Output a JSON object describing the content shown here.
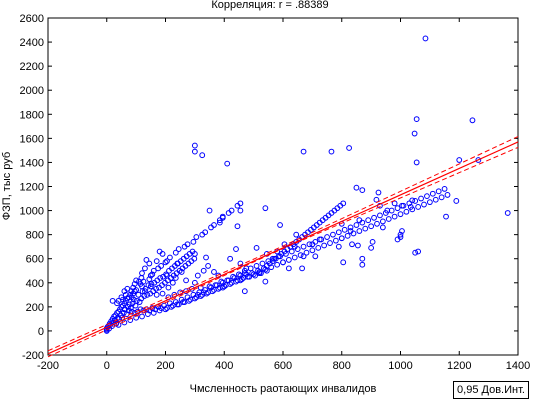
{
  "chart_data": {
    "type": "scatter",
    "title": "Корреляция: r =  .88389",
    "xlabel": "Чмсленность раотающих инвалидов",
    "ylabel": "ФЗП, тыс руб",
    "xlim": [
      -200,
      1400
    ],
    "ylim": [
      -200,
      2600
    ],
    "x_ticks": [
      -200,
      0,
      200,
      400,
      600,
      800,
      1000,
      1200,
      1400
    ],
    "y_ticks": [
      -200,
      0,
      200,
      400,
      600,
      800,
      1000,
      1200,
      1400,
      1600,
      1800,
      2000,
      2200,
      2400,
      2600
    ],
    "legend_text": "0,95 Дов.Инт.",
    "grid": false,
    "colors": {
      "points": "#0000ff",
      "fit_line": "#ff0000",
      "confidence_band": "#ff0000",
      "axes": "#000000"
    },
    "fit": {
      "x0": -200,
      "y0": -190,
      "x1": 1400,
      "y1": 1570
    },
    "confidence": {
      "upper": [
        [
          -200,
          -165
        ],
        [
          600,
          705
        ],
        [
          1400,
          1615
        ]
      ],
      "lower": [
        [
          -200,
          -215
        ],
        [
          600,
          685
        ],
        [
          1400,
          1525
        ]
      ]
    },
    "points": [
      [
        1085,
        2430
      ],
      [
        1055,
        1760
      ],
      [
        1245,
        1750
      ],
      [
        1048,
        1640
      ],
      [
        1365,
        980
      ],
      [
        300,
        1540
      ],
      [
        300,
        1490
      ],
      [
        325,
        1460
      ],
      [
        410,
        1390
      ],
      [
        670,
        1490
      ],
      [
        765,
        1490
      ],
      [
        825,
        1520
      ],
      [
        1055,
        1400
      ],
      [
        1200,
        1420
      ],
      [
        1265,
        1420
      ],
      [
        1190,
        1080
      ],
      [
        1155,
        950
      ],
      [
        1060,
        660
      ],
      [
        1050,
        650
      ],
      [
        1005,
        830
      ],
      [
        925,
        1150
      ],
      [
        870,
        1170
      ],
      [
        850,
        1190
      ],
      [
        918,
        1090
      ],
      [
        930,
        1040
      ],
      [
        1035,
        1030
      ],
      [
        955,
        1000
      ],
      [
        980,
        1060
      ],
      [
        1005,
        1040
      ],
      [
        1040,
        1085
      ],
      [
        940,
        860
      ],
      [
        905,
        740
      ],
      [
        1000,
        800
      ],
      [
        1000,
        780
      ],
      [
        990,
        760
      ],
      [
        860,
        920
      ],
      [
        900,
        690
      ],
      [
        830,
        830
      ],
      [
        800,
        890
      ],
      [
        790,
        700
      ],
      [
        870,
        550
      ],
      [
        805,
        570
      ],
      [
        800,
        770
      ],
      [
        870,
        600
      ],
      [
        855,
        710
      ],
      [
        835,
        720
      ],
      [
        725,
        760
      ],
      [
        700,
        720
      ],
      [
        710,
        620
      ],
      [
        670,
        620
      ],
      [
        640,
        700
      ],
      [
        605,
        720
      ],
      [
        645,
        800
      ],
      [
        665,
        520
      ],
      [
        590,
        880
      ],
      [
        540,
        1020
      ],
      [
        455,
        1000
      ],
      [
        395,
        950
      ],
      [
        350,
        1000
      ],
      [
        445,
        870
      ],
      [
        385,
        900
      ],
      [
        455,
        560
      ],
      [
        440,
        680
      ],
      [
        420,
        600
      ],
      [
        510,
        690
      ],
      [
        545,
        640
      ],
      [
        565,
        600
      ],
      [
        580,
        660
      ],
      [
        600,
        570
      ],
      [
        620,
        520
      ],
      [
        475,
        520
      ],
      [
        470,
        480
      ],
      [
        470,
        330
      ],
      [
        455,
        420
      ],
      [
        520,
        480
      ],
      [
        545,
        500
      ],
      [
        540,
        410
      ],
      [
        395,
        360
      ],
      [
        380,
        460
      ],
      [
        365,
        490
      ],
      [
        338,
        610
      ],
      [
        345,
        540
      ],
      [
        330,
        500
      ],
      [
        300,
        640
      ],
      [
        310,
        460
      ],
      [
        300,
        400
      ],
      [
        320,
        360
      ],
      [
        270,
        420
      ],
      [
        255,
        490
      ],
      [
        240,
        560
      ],
      [
        235,
        440
      ],
      [
        225,
        400
      ],
      [
        210,
        360
      ],
      [
        205,
        460
      ],
      [
        200,
        570
      ],
      [
        190,
        640
      ],
      [
        180,
        660
      ],
      [
        170,
        580
      ],
      [
        160,
        500
      ],
      [
        150,
        460
      ],
      [
        145,
        560
      ],
      [
        135,
        590
      ],
      [
        130,
        520
      ],
      [
        120,
        480
      ],
      [
        118,
        440
      ],
      [
        110,
        410
      ],
      [
        100,
        420
      ],
      [
        95,
        390
      ],
      [
        90,
        360
      ],
      [
        84,
        330
      ],
      [
        80,
        300
      ],
      [
        75,
        280
      ],
      [
        70,
        270
      ],
      [
        65,
        250
      ],
      [
        60,
        230
      ],
      [
        55,
        210
      ],
      [
        50,
        200
      ],
      [
        45,
        180
      ],
      [
        40,
        160
      ],
      [
        35,
        150
      ],
      [
        30,
        130
      ],
      [
        25,
        120
      ],
      [
        20,
        100
      ],
      [
        15,
        80
      ],
      [
        10,
        60
      ],
      [
        5,
        40
      ],
      [
        0,
        20
      ],
      [
        0,
        0
      ],
      [
        0,
        10
      ],
      [
        2,
        30
      ],
      [
        8,
        20
      ],
      [
        12,
        50
      ],
      [
        18,
        40
      ],
      [
        22,
        70
      ],
      [
        28,
        90
      ],
      [
        32,
        60
      ],
      [
        38,
        110
      ],
      [
        42,
        100
      ],
      [
        48,
        130
      ],
      [
        52,
        110
      ],
      [
        58,
        150
      ],
      [
        62,
        180
      ],
      [
        68,
        140
      ],
      [
        72,
        200
      ],
      [
        78,
        220
      ],
      [
        82,
        190
      ],
      [
        88,
        230
      ],
      [
        92,
        260
      ],
      [
        98,
        210
      ],
      [
        102,
        250
      ],
      [
        108,
        300
      ],
      [
        112,
        240
      ],
      [
        118,
        270
      ],
      [
        122,
        330
      ],
      [
        128,
        290
      ],
      [
        132,
        350
      ],
      [
        138,
        300
      ],
      [
        142,
        380
      ],
      [
        148,
        310
      ],
      [
        152,
        390
      ],
      [
        158,
        330
      ],
      [
        162,
        400
      ],
      [
        168,
        350
      ],
      [
        172,
        420
      ],
      [
        178,
        360
      ],
      [
        182,
        440
      ],
      [
        188,
        380
      ],
      [
        192,
        450
      ],
      [
        198,
        400
      ],
      [
        202,
        470
      ],
      [
        208,
        420
      ],
      [
        212,
        500
      ],
      [
        218,
        440
      ],
      [
        222,
        520
      ],
      [
        228,
        460
      ],
      [
        232,
        540
      ],
      [
        238,
        480
      ],
      [
        242,
        560
      ],
      [
        248,
        500
      ],
      [
        252,
        580
      ],
      [
        258,
        520
      ],
      [
        262,
        600
      ],
      [
        268,
        540
      ],
      [
        272,
        620
      ],
      [
        278,
        560
      ],
      [
        282,
        640
      ],
      [
        288,
        580
      ],
      [
        292,
        660
      ],
      [
        298,
        600
      ],
      [
        60,
        330
      ],
      [
        70,
        350
      ],
      [
        90,
        310
      ],
      [
        100,
        340
      ],
      [
        120,
        370
      ],
      [
        130,
        330
      ],
      [
        150,
        370
      ],
      [
        170,
        300
      ],
      [
        190,
        310
      ],
      [
        210,
        280
      ],
      [
        230,
        300
      ],
      [
        250,
        320
      ],
      [
        270,
        330
      ],
      [
        290,
        350
      ],
      [
        310,
        300
      ],
      [
        330,
        320
      ],
      [
        350,
        370
      ],
      [
        370,
        380
      ],
      [
        390,
        410
      ],
      [
        410,
        420
      ],
      [
        430,
        450
      ],
      [
        450,
        470
      ],
      [
        470,
        500
      ],
      [
        490,
        520
      ],
      [
        510,
        540
      ],
      [
        530,
        560
      ],
      [
        550,
        580
      ],
      [
        570,
        600
      ],
      [
        590,
        620
      ],
      [
        610,
        640
      ],
      [
        630,
        660
      ],
      [
        650,
        680
      ],
      [
        670,
        700
      ],
      [
        690,
        720
      ],
      [
        710,
        740
      ],
      [
        730,
        760
      ],
      [
        750,
        780
      ],
      [
        770,
        800
      ],
      [
        790,
        820
      ],
      [
        810,
        840
      ],
      [
        830,
        860
      ],
      [
        850,
        880
      ],
      [
        870,
        900
      ],
      [
        890,
        920
      ],
      [
        910,
        940
      ],
      [
        930,
        960
      ],
      [
        950,
        980
      ],
      [
        970,
        1000
      ],
      [
        990,
        1020
      ],
      [
        1010,
        1040
      ],
      [
        1030,
        1060
      ],
      [
        1050,
        1080
      ],
      [
        1070,
        1100
      ],
      [
        1090,
        1120
      ],
      [
        1110,
        1140
      ],
      [
        1130,
        1160
      ],
      [
        1150,
        1180
      ],
      [
        40,
        250
      ],
      [
        50,
        280
      ],
      [
        60,
        180
      ],
      [
        75,
        170
      ],
      [
        85,
        160
      ],
      [
        95,
        150
      ],
      [
        105,
        160
      ],
      [
        115,
        180
      ],
      [
        125,
        170
      ],
      [
        135,
        180
      ],
      [
        145,
        170
      ],
      [
        155,
        190
      ],
      [
        165,
        180
      ],
      [
        175,
        200
      ],
      [
        185,
        190
      ],
      [
        195,
        210
      ],
      [
        205,
        190
      ],
      [
        215,
        230
      ],
      [
        225,
        210
      ],
      [
        235,
        240
      ],
      [
        245,
        220
      ],
      [
        255,
        260
      ],
      [
        265,
        240
      ],
      [
        275,
        280
      ],
      [
        285,
        260
      ],
      [
        295,
        300
      ],
      [
        305,
        280
      ],
      [
        315,
        320
      ],
      [
        325,
        300
      ],
      [
        335,
        340
      ],
      [
        345,
        320
      ],
      [
        355,
        360
      ],
      [
        365,
        340
      ],
      [
        375,
        380
      ],
      [
        385,
        360
      ],
      [
        395,
        400
      ],
      [
        405,
        380
      ],
      [
        415,
        420
      ],
      [
        425,
        400
      ],
      [
        435,
        440
      ],
      [
        445,
        420
      ],
      [
        455,
        460
      ],
      [
        465,
        440
      ],
      [
        475,
        470
      ],
      [
        485,
        450
      ],
      [
        495,
        480
      ],
      [
        505,
        460
      ],
      [
        515,
        500
      ],
      [
        525,
        480
      ],
      [
        535,
        520
      ],
      [
        545,
        540
      ],
      [
        555,
        560
      ],
      [
        565,
        580
      ],
      [
        575,
        600
      ],
      [
        585,
        620
      ],
      [
        595,
        640
      ],
      [
        605,
        660
      ],
      [
        615,
        680
      ],
      [
        625,
        700
      ],
      [
        635,
        720
      ],
      [
        645,
        740
      ],
      [
        655,
        760
      ],
      [
        665,
        780
      ],
      [
        675,
        800
      ],
      [
        685,
        820
      ],
      [
        695,
        840
      ],
      [
        705,
        860
      ],
      [
        715,
        880
      ],
      [
        725,
        900
      ],
      [
        735,
        920
      ],
      [
        745,
        940
      ],
      [
        755,
        960
      ],
      [
        765,
        980
      ],
      [
        775,
        1000
      ],
      [
        785,
        1020
      ],
      [
        795,
        1040
      ],
      [
        805,
        1060
      ],
      [
        20,
        250
      ],
      [
        35,
        230
      ],
      [
        55,
        260
      ],
      [
        65,
        300
      ],
      [
        85,
        280
      ],
      [
        95,
        330
      ],
      [
        115,
        390
      ],
      [
        125,
        410
      ],
      [
        145,
        430
      ],
      [
        155,
        470
      ],
      [
        175,
        520
      ],
      [
        185,
        540
      ],
      [
        205,
        580
      ],
      [
        215,
        610
      ],
      [
        235,
        650
      ],
      [
        245,
        680
      ],
      [
        265,
        700
      ],
      [
        275,
        720
      ],
      [
        295,
        740
      ],
      [
        305,
        780
      ],
      [
        325,
        800
      ],
      [
        335,
        820
      ],
      [
        355,
        860
      ],
      [
        365,
        880
      ],
      [
        385,
        920
      ],
      [
        395,
        940
      ],
      [
        415,
        980
      ],
      [
        425,
        1000
      ],
      [
        445,
        1040
      ],
      [
        455,
        1060
      ],
      [
        40,
        50
      ],
      [
        60,
        70
      ],
      [
        80,
        90
      ],
      [
        100,
        110
      ],
      [
        120,
        120
      ],
      [
        140,
        140
      ],
      [
        160,
        150
      ],
      [
        180,
        170
      ],
      [
        200,
        180
      ],
      [
        220,
        200
      ],
      [
        240,
        220
      ],
      [
        260,
        240
      ],
      [
        280,
        250
      ],
      [
        300,
        270
      ],
      [
        320,
        290
      ],
      [
        340,
        310
      ],
      [
        360,
        330
      ],
      [
        380,
        350
      ],
      [
        400,
        370
      ],
      [
        420,
        390
      ],
      [
        440,
        410
      ],
      [
        460,
        430
      ],
      [
        480,
        450
      ],
      [
        500,
        470
      ],
      [
        520,
        490
      ],
      [
        540,
        510
      ],
      [
        560,
        530
      ],
      [
        580,
        550
      ],
      [
        600,
        570
      ],
      [
        620,
        590
      ],
      [
        640,
        610
      ],
      [
        660,
        630
      ],
      [
        680,
        650
      ],
      [
        700,
        670
      ],
      [
        720,
        690
      ],
      [
        740,
        710
      ],
      [
        760,
        730
      ],
      [
        780,
        750
      ],
      [
        800,
        770
      ],
      [
        820,
        790
      ],
      [
        840,
        810
      ],
      [
        860,
        830
      ],
      [
        880,
        850
      ],
      [
        900,
        870
      ],
      [
        920,
        890
      ],
      [
        940,
        910
      ],
      [
        960,
        930
      ],
      [
        980,
        950
      ],
      [
        1000,
        970
      ],
      [
        1020,
        990
      ],
      [
        1040,
        1010
      ],
      [
        1060,
        1030
      ],
      [
        1080,
        1050
      ],
      [
        1100,
        1070
      ],
      [
        1120,
        1090
      ],
      [
        1140,
        1110
      ],
      [
        1160,
        1130
      ]
    ]
  }
}
